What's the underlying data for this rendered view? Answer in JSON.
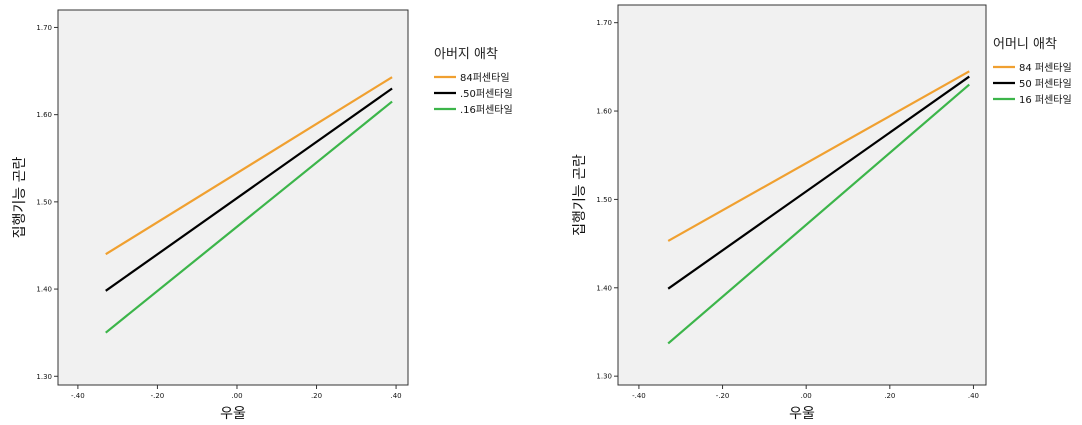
{
  "chart_data": [
    {
      "type": "line",
      "xlabel": "우울",
      "ylabel": "집행기능 곤란",
      "xlim": [
        -0.45,
        0.43
      ],
      "ylim": [
        1.29,
        1.72
      ],
      "x_ticks": [
        -0.4,
        -0.2,
        0.0,
        0.2,
        0.4
      ],
      "x_tick_labels": [
        "-.40",
        "-.20",
        ".00",
        ".20",
        ".40"
      ],
      "y_ticks": [
        1.3,
        1.4,
        1.5,
        1.6,
        1.7
      ],
      "y_tick_labels": [
        "1.30",
        "1.40",
        "1.50",
        "1.60",
        "1.70"
      ],
      "legend": {
        "title": "아버지 애착",
        "placement": "right-outside"
      },
      "grid": false,
      "series": [
        {
          "name": "84퍼센타일",
          "color": "#F0A030",
          "x": [
            -0.33,
            0.39
          ],
          "y": [
            1.44,
            1.643
          ]
        },
        {
          "name": ".50퍼센타일",
          "color": "#000000",
          "x": [
            -0.33,
            0.39
          ],
          "y": [
            1.398,
            1.63
          ]
        },
        {
          "name": ".16퍼센타일",
          "color": "#3CB54A",
          "x": [
            -0.33,
            0.39
          ],
          "y": [
            1.35,
            1.615
          ]
        }
      ]
    },
    {
      "type": "line",
      "xlabel": "우울",
      "ylabel": "집행기능 곤란",
      "xlim": [
        -0.45,
        0.43
      ],
      "ylim": [
        1.29,
        1.72
      ],
      "x_ticks": [
        -0.4,
        -0.2,
        0.0,
        0.2,
        0.4
      ],
      "x_tick_labels": [
        "-.40",
        "-.20",
        ".00",
        ".20",
        ".40"
      ],
      "y_ticks": [
        1.3,
        1.4,
        1.5,
        1.6,
        1.7
      ],
      "y_tick_labels": [
        "1.30",
        "1.40",
        "1.50",
        "1.60",
        "1.70"
      ],
      "legend": {
        "title": "어머니 애착",
        "placement": "right-outside"
      },
      "grid": false,
      "series": [
        {
          "name": "84 퍼센타일",
          "color": "#F0A030",
          "x": [
            -0.33,
            0.39
          ],
          "y": [
            1.453,
            1.645
          ]
        },
        {
          "name": "50 퍼센타일",
          "color": "#000000",
          "x": [
            -0.33,
            0.39
          ],
          "y": [
            1.399,
            1.639
          ]
        },
        {
          "name": "16 퍼센타일",
          "color": "#3CB54A",
          "x": [
            -0.33,
            0.39
          ],
          "y": [
            1.337,
            1.63
          ]
        }
      ]
    }
  ]
}
